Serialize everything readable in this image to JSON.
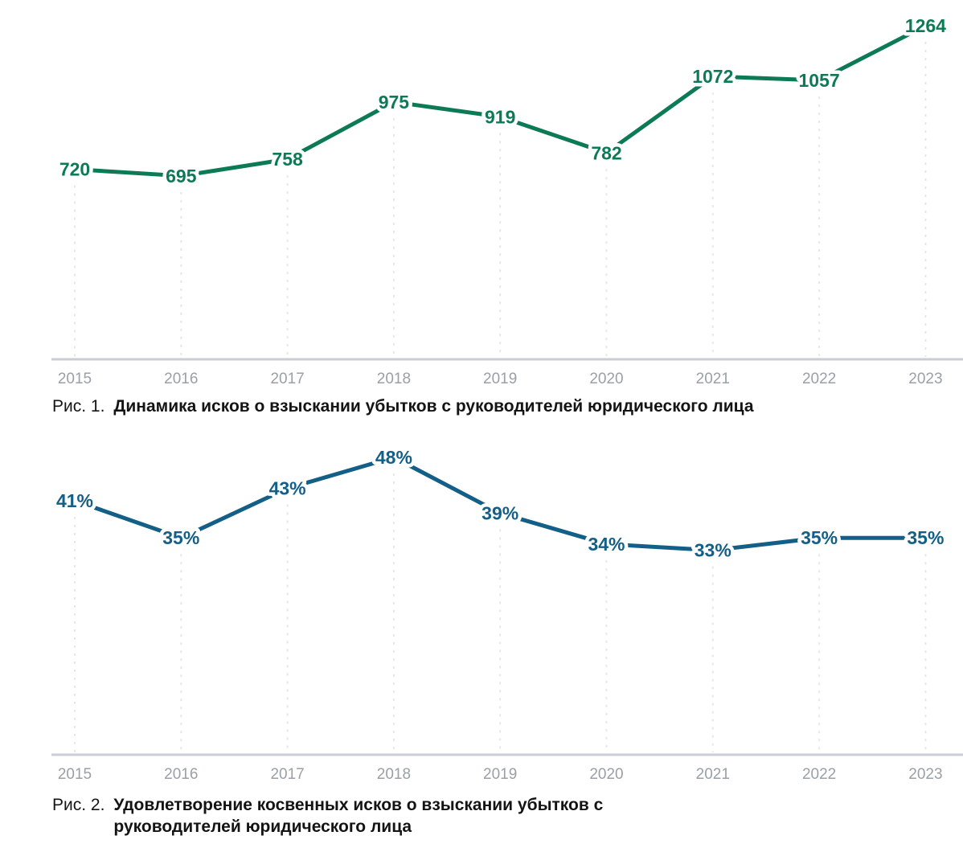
{
  "colors": {
    "green_line": "#0d7a56",
    "blue_line": "#135f87",
    "axis": "#c8ced3",
    "grid": "#e3e9e5",
    "year_label": "#9aa0a6",
    "caption_text": "#141414",
    "label_halo": "#ffffff"
  },
  "figures": [
    {
      "label": "Рис. 1.",
      "title": "Динамика исков о взыскании убытков с руководителей юридического лица"
    },
    {
      "label": "Рис. 2.",
      "title": "Удовлетворение косвенных исков о взыскании убытков с руководителей юридического лица"
    }
  ],
  "chart_data": [
    {
      "type": "line",
      "title": "Динамика исков о взыскании убытков с руководителей юридического лица",
      "categories": [
        "2015",
        "2016",
        "2017",
        "2018",
        "2019",
        "2020",
        "2021",
        "2022",
        "2023"
      ],
      "values": [
        720,
        695,
        758,
        975,
        919,
        782,
        1072,
        1057,
        1264
      ],
      "value_labels": [
        "720",
        "695",
        "758",
        "975",
        "919",
        "782",
        "1072",
        "1057",
        "1264"
      ],
      "line_color": "#0d7a56",
      "xlabel": "",
      "ylabel": "",
      "ylim": [
        0,
        1330
      ],
      "grid": "vertical-dashed",
      "legend": "none",
      "markers": "value-labels-on-points"
    },
    {
      "type": "line",
      "title": "Удовлетворение косвенных исков о взыскании убытков с руководителей юридического лица",
      "categories": [
        "2015",
        "2016",
        "2017",
        "2018",
        "2019",
        "2020",
        "2021",
        "2022",
        "2023"
      ],
      "values": [
        41,
        35,
        43,
        48,
        39,
        34,
        33,
        35,
        35
      ],
      "value_labels": [
        "41%",
        "35%",
        "43%",
        "48%",
        "39%",
        "34%",
        "33%",
        "35%",
        "35%"
      ],
      "unit": "%",
      "line_color": "#135f87",
      "xlabel": "",
      "ylabel": "",
      "ylim": [
        0,
        52
      ],
      "grid": "vertical-dashed",
      "legend": "none",
      "markers": "value-labels-on-points"
    }
  ]
}
